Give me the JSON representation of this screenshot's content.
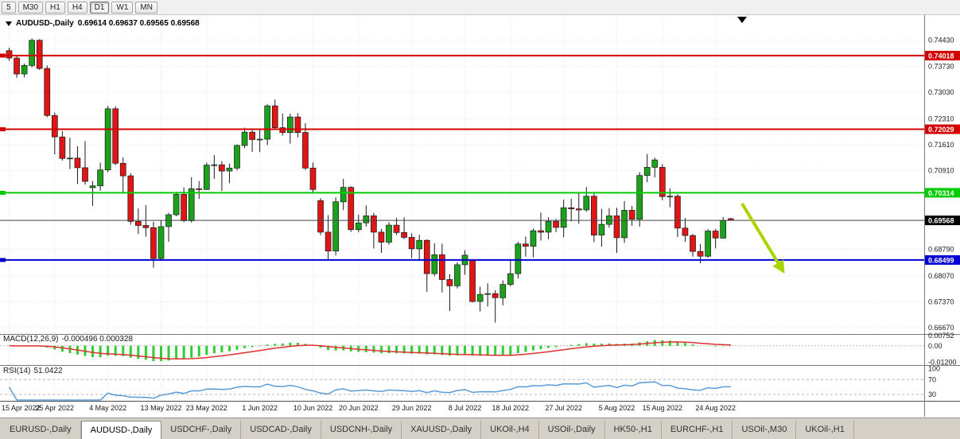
{
  "toolbar": {
    "periods": [
      "5",
      "M30",
      "H1",
      "H4",
      "D1",
      "W1",
      "MN"
    ],
    "active": "D1"
  },
  "chart_header": {
    "title": "AUDUSD-,Daily",
    "ohlc": "0.69614 0.69637 0.69565 0.69568"
  },
  "colors": {
    "candle_up": "#1ca11c",
    "candle_down": "#e01616",
    "wick": "#1a1a1a",
    "grid": "#e4e4e4",
    "separator": "#7a7a7a"
  },
  "chart_data": {
    "type": "candlestick",
    "symbol": "AUDUSD-",
    "timeframe": "Daily",
    "title": "AUDUSD-,Daily 0.69614 0.69637 0.69565 0.69568",
    "price_range": [
      0.665,
      0.7511
    ],
    "candles": [
      [
        0.7415,
        0.7423,
        0.7388,
        0.7395
      ],
      [
        0.7395,
        0.7401,
        0.7342,
        0.7352
      ],
      [
        0.7352,
        0.738,
        0.7343,
        0.7375
      ],
      [
        0.7375,
        0.7448,
        0.737,
        0.7443
      ],
      [
        0.7443,
        0.7446,
        0.7363,
        0.7367
      ],
      [
        0.7367,
        0.7375,
        0.7235,
        0.724
      ],
      [
        0.724,
        0.7248,
        0.7135,
        0.7182
      ],
      [
        0.7182,
        0.7198,
        0.7118,
        0.7124
      ],
      [
        0.7124,
        0.718,
        0.7095,
        0.7125
      ],
      [
        0.7125,
        0.7157,
        0.7055,
        0.7099
      ],
      [
        0.7099,
        0.7171,
        0.7053,
        0.7062
      ],
      [
        0.7045,
        0.7063,
        0.6996,
        0.705
      ],
      [
        0.705,
        0.7113,
        0.7037,
        0.7093
      ],
      [
        0.7093,
        0.7266,
        0.7087,
        0.7258
      ],
      [
        0.7258,
        0.7265,
        0.7106,
        0.7111
      ],
      [
        0.7111,
        0.7127,
        0.7029,
        0.7077
      ],
      [
        0.7077,
        0.7084,
        0.6945,
        0.6954
      ],
      [
        0.6954,
        0.6989,
        0.692,
        0.6943
      ],
      [
        0.6943,
        0.6998,
        0.6913,
        0.6937
      ],
      [
        0.6937,
        0.6953,
        0.6829,
        0.6854
      ],
      [
        0.6854,
        0.6958,
        0.6848,
        0.694
      ],
      [
        0.694,
        0.6977,
        0.6899,
        0.6972
      ],
      [
        0.6972,
        0.7034,
        0.6968,
        0.7027
      ],
      [
        0.7027,
        0.7046,
        0.6952,
        0.6956
      ],
      [
        0.6956,
        0.7073,
        0.6951,
        0.7042
      ],
      [
        0.7042,
        0.7063,
        0.7015,
        0.704
      ],
      [
        0.704,
        0.7113,
        0.7039,
        0.7106
      ],
      [
        0.7106,
        0.7133,
        0.7069,
        0.7107
      ],
      [
        0.7107,
        0.7117,
        0.7036,
        0.709
      ],
      [
        0.709,
        0.711,
        0.7057,
        0.7098
      ],
      [
        0.7098,
        0.7162,
        0.7092,
        0.7159
      ],
      [
        0.7159,
        0.7207,
        0.7152,
        0.7195
      ],
      [
        0.7195,
        0.7202,
        0.7142,
        0.7175
      ],
      [
        0.7175,
        0.7204,
        0.7141,
        0.7176
      ],
      [
        0.7176,
        0.7271,
        0.716,
        0.7266
      ],
      [
        0.7266,
        0.7283,
        0.7202,
        0.7207
      ],
      [
        0.7207,
        0.7245,
        0.7186,
        0.7194
      ],
      [
        0.7194,
        0.7245,
        0.7164,
        0.7236
      ],
      [
        0.7236,
        0.7246,
        0.7181,
        0.7194
      ],
      [
        0.7194,
        0.7219,
        0.7093,
        0.7098
      ],
      [
        0.7098,
        0.7113,
        0.7031,
        0.704
      ],
      [
        0.701,
        0.7017,
        0.6917,
        0.6925
      ],
      [
        0.6925,
        0.6971,
        0.685,
        0.6874
      ],
      [
        0.6874,
        0.7019,
        0.6862,
        0.7007
      ],
      [
        0.7007,
        0.7069,
        0.6984,
        0.7046
      ],
      [
        0.7046,
        0.7049,
        0.6926,
        0.6932
      ],
      [
        0.6932,
        0.6972,
        0.6925,
        0.695
      ],
      [
        0.695,
        0.6997,
        0.694,
        0.6969
      ],
      [
        0.6969,
        0.6977,
        0.6881,
        0.6925
      ],
      [
        0.6925,
        0.6934,
        0.6869,
        0.6898
      ],
      [
        0.6898,
        0.6952,
        0.6891,
        0.6944
      ],
      [
        0.6944,
        0.6964,
        0.6917,
        0.6924
      ],
      [
        0.6924,
        0.6965,
        0.6906,
        0.6911
      ],
      [
        0.6911,
        0.6922,
        0.6855,
        0.688
      ],
      [
        0.688,
        0.6918,
        0.685,
        0.6903
      ],
      [
        0.6903,
        0.6906,
        0.6764,
        0.6813
      ],
      [
        0.6813,
        0.6895,
        0.6806,
        0.6864
      ],
      [
        0.6864,
        0.6894,
        0.6762,
        0.6797
      ],
      [
        0.6797,
        0.6812,
        0.6712,
        0.678
      ],
      [
        0.678,
        0.6844,
        0.6773,
        0.6837
      ],
      [
        0.6837,
        0.6876,
        0.681,
        0.6863
      ],
      [
        0.685,
        0.6852,
        0.6735,
        0.6738
      ],
      [
        0.6738,
        0.6778,
        0.6711,
        0.6757
      ],
      [
        0.6757,
        0.6787,
        0.6724,
        0.6759
      ],
      [
        0.6759,
        0.6768,
        0.6681,
        0.6748
      ],
      [
        0.6748,
        0.6795,
        0.6727,
        0.6784
      ],
      [
        0.6784,
        0.6849,
        0.6779,
        0.6813
      ],
      [
        0.6813,
        0.6899,
        0.68,
        0.6893
      ],
      [
        0.6893,
        0.6913,
        0.6859,
        0.6887
      ],
      [
        0.6887,
        0.6935,
        0.6857,
        0.6929
      ],
      [
        0.6929,
        0.6978,
        0.6902,
        0.6925
      ],
      [
        0.6925,
        0.6965,
        0.6906,
        0.6954
      ],
      [
        0.6954,
        0.6961,
        0.6925,
        0.6938
      ],
      [
        0.6938,
        0.7013,
        0.6911,
        0.6991
      ],
      [
        0.6991,
        0.7015,
        0.6954,
        0.6988
      ],
      [
        0.6988,
        0.7033,
        0.6948,
        0.6985
      ],
      [
        0.6985,
        0.7047,
        0.698,
        0.7022
      ],
      [
        0.7022,
        0.7032,
        0.6898,
        0.6917
      ],
      [
        0.6917,
        0.6988,
        0.6886,
        0.6946
      ],
      [
        0.6946,
        0.699,
        0.6937,
        0.6969
      ],
      [
        0.6969,
        0.6991,
        0.6869,
        0.691
      ],
      [
        0.691,
        0.7009,
        0.6896,
        0.6984
      ],
      [
        0.6984,
        0.6996,
        0.6942,
        0.696
      ],
      [
        0.696,
        0.7087,
        0.694,
        0.7078
      ],
      [
        0.7078,
        0.7136,
        0.706,
        0.71
      ],
      [
        0.71,
        0.7126,
        0.7073,
        0.712
      ],
      [
        0.71,
        0.7109,
        0.7011,
        0.7021
      ],
      [
        0.7021,
        0.7043,
        0.6992,
        0.7022
      ],
      [
        0.7022,
        0.7027,
        0.6912,
        0.6936
      ],
      [
        0.6936,
        0.6963,
        0.6899,
        0.6916
      ],
      [
        0.6916,
        0.692,
        0.6859,
        0.6873
      ],
      [
        0.6873,
        0.6893,
        0.6841,
        0.686
      ],
      [
        0.686,
        0.6933,
        0.6856,
        0.6928
      ],
      [
        0.6928,
        0.6934,
        0.6881,
        0.6909
      ],
      [
        0.6909,
        0.6966,
        0.6907,
        0.6956
      ],
      [
        0.69614,
        0.69637,
        0.69565,
        0.69568
      ]
    ],
    "x_labels": [
      {
        "i": 0,
        "t": "15 Apr 2022"
      },
      {
        "i": 6,
        "t": "25 Apr 2022"
      },
      {
        "i": 13,
        "t": "4 May 2022"
      },
      {
        "i": 20,
        "t": "13 May 2022"
      },
      {
        "i": 26,
        "t": "23 May 2022"
      },
      {
        "i": 33,
        "t": "1 Jun 2022"
      },
      {
        "i": 40,
        "t": "10 Jun 2022"
      },
      {
        "i": 46,
        "t": "20 Jun 2022"
      },
      {
        "i": 53,
        "t": "29 Jun 2022"
      },
      {
        "i": 60,
        "t": "8 Jul 2022"
      },
      {
        "i": 66,
        "t": "18 Jul 2022"
      },
      {
        "i": 73,
        "t": "27 Jul 2022"
      },
      {
        "i": 80,
        "t": "5 Aug 2022"
      },
      {
        "i": 86,
        "t": "15 Aug 2022"
      },
      {
        "i": 93,
        "t": "24 Aug 2022"
      }
    ],
    "y_ticks": [
      "0.74430",
      "0.73730",
      "0.73030",
      "0.72310",
      "0.71610",
      "0.70910",
      "0.68790",
      "0.68070",
      "0.67370",
      "0.66670"
    ],
    "hlines": [
      {
        "label": "0.74018",
        "value": 0.74018,
        "color": "#d40000"
      },
      {
        "label": "0.72029",
        "value": 0.72029,
        "color": "#d40000"
      },
      {
        "label": "0.70314",
        "value": 0.70314,
        "color": "#00cc00"
      },
      {
        "label": "0.68499",
        "value": 0.68499,
        "color": "#0000d4"
      }
    ],
    "last_price": {
      "label": "0.69568",
      "value": 0.69568,
      "color": "#000000"
    },
    "indicators": {
      "macd": {
        "name": "MACD(12,26,9)",
        "values_text": "-0.000496 0.000328",
        "ticks": [
          {
            "label": "0.00752",
            "value": 0.00752
          },
          {
            "label": "0.00",
            "value": 0
          },
          {
            "label": "-0.01200",
            "value": -0.012
          }
        ],
        "colors": {
          "histogram": "#32cd32",
          "signal": "#e03030"
        }
      },
      "rsi": {
        "name": "RSI(14)",
        "value": "51.0422",
        "ticks": [
          {
            "label": "100",
            "value": 100
          },
          {
            "label": "70",
            "value": 70
          },
          {
            "label": "30",
            "value": 30
          }
        ],
        "levels": [
          70,
          30
        ],
        "color": "#5b9bd5"
      }
    },
    "annotations": {
      "arrow": {
        "color": "#aad400",
        "from": [
          933,
          256
        ],
        "to": [
          984,
          340
        ]
      }
    }
  },
  "tabs": [
    {
      "label": "EURUSD-,Daily",
      "active": false
    },
    {
      "label": "AUDUSD-,Daily",
      "active": true
    },
    {
      "label": "USDCHF-,Daily",
      "active": false
    },
    {
      "label": "USDCAD-,Daily",
      "active": false
    },
    {
      "label": "USDCNH-,Daily",
      "active": false
    },
    {
      "label": "XAUUSD-,Daily",
      "active": false
    },
    {
      "label": "UKOil-,H4",
      "active": false
    },
    {
      "label": "USOil-,Daily",
      "active": false
    },
    {
      "label": "HK50-,H1",
      "active": false
    },
    {
      "label": "EURCHF-,H1",
      "active": false
    },
    {
      "label": "USOil-,M30",
      "active": false
    },
    {
      "label": "UKOil-,H1",
      "active": false
    }
  ]
}
